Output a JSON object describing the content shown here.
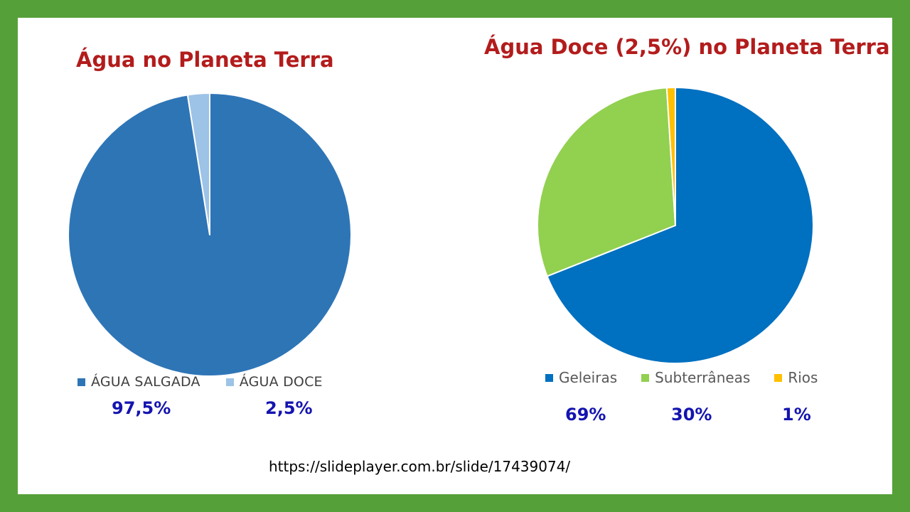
{
  "chart_data": [
    {
      "type": "pie",
      "title": "Água no Planeta Terra",
      "categories": [
        "ÁGUA SALGADA",
        "ÁGUA DOCE"
      ],
      "values": [
        97.5,
        2.5
      ],
      "value_labels": [
        "97,5%",
        "2,5%"
      ],
      "colors": [
        "#2e75b6",
        "#9dc3e6"
      ],
      "legend_position": "bottom"
    },
    {
      "type": "pie",
      "title": "Água Doce (2,5%) no Planeta Terra",
      "categories": [
        "Geleiras",
        "Subterrâneas",
        "Rios"
      ],
      "values": [
        69,
        30,
        1
      ],
      "value_labels": [
        "69%",
        "30%",
        "1%"
      ],
      "colors": [
        "#0070c0",
        "#92d050",
        "#ffc000"
      ],
      "legend_position": "bottom"
    }
  ],
  "source": "https://slideplayer.com.br/slide/17439074/",
  "colors": {
    "frame": "#56a03a",
    "background": "#ffffff",
    "title": "#b31c1c",
    "percent": "#1414b0"
  }
}
